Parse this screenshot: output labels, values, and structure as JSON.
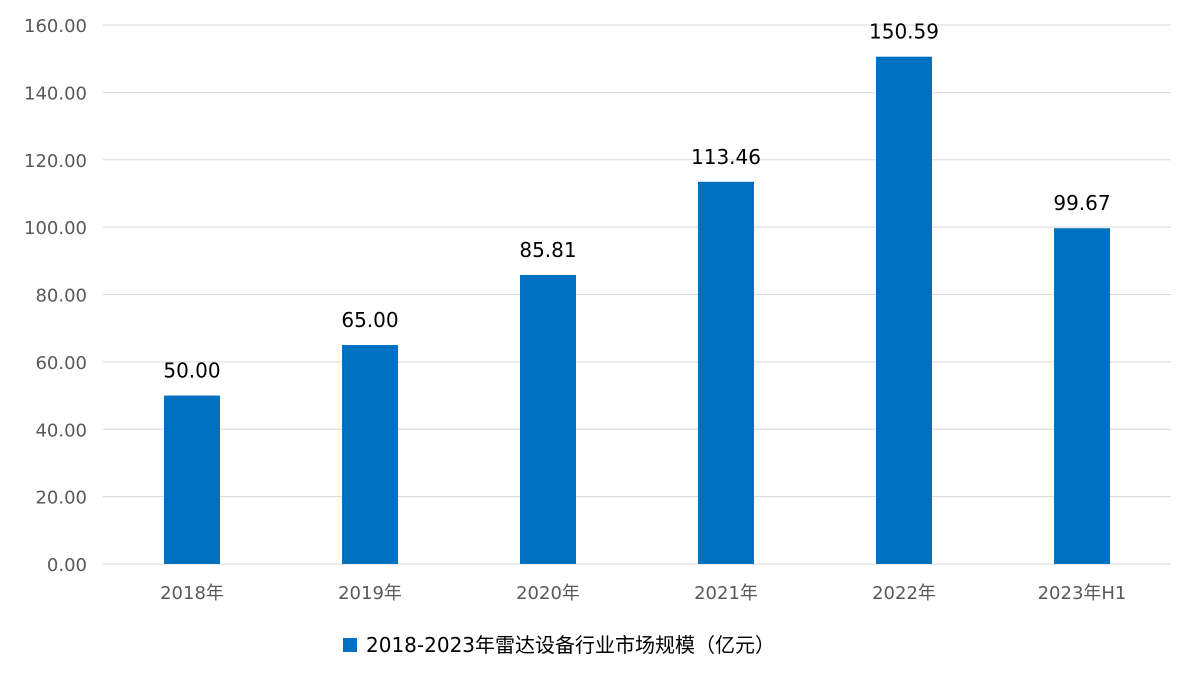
{
  "chart_data": {
    "type": "bar",
    "categories": [
      "2018年",
      "2019年",
      "2020年",
      "2021年",
      "2022年",
      "2023年H1"
    ],
    "series": [
      {
        "name": "2018-2023年雷达设备行业市场规模（亿元）",
        "values": [
          50.0,
          65.0,
          85.81,
          113.46,
          150.59,
          99.67
        ],
        "value_labels": [
          "50.00",
          "65.00",
          "85.81",
          "113.46",
          "150.59",
          "99.67"
        ],
        "color": "#0070C0"
      }
    ],
    "y_ticks": [
      "0.00",
      "20.00",
      "40.00",
      "60.00",
      "80.00",
      "100.00",
      "120.00",
      "140.00",
      "160.00"
    ],
    "ylim": [
      0,
      160
    ],
    "grid": true,
    "grid_color": "#D9D9D9",
    "legend_position": "bottom"
  }
}
